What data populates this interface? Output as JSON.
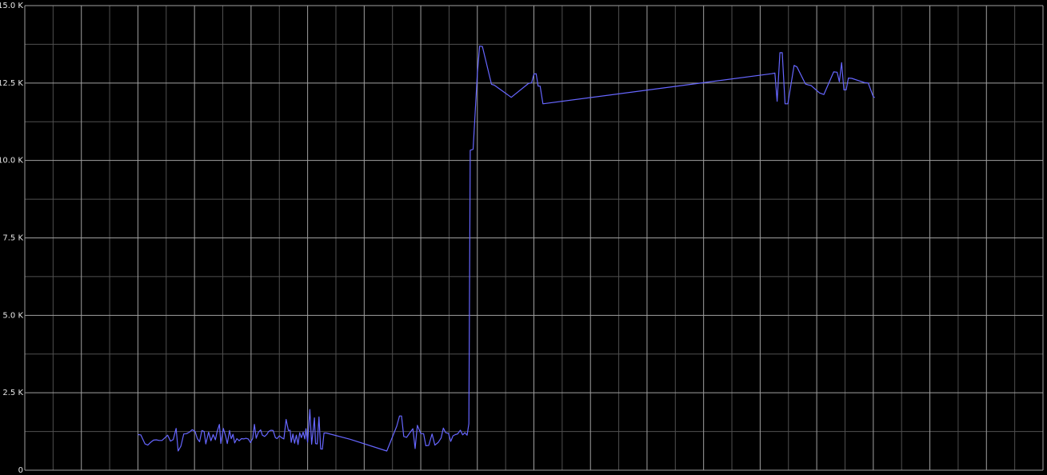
{
  "chart_data": {
    "type": "line",
    "title": "",
    "xlabel": "",
    "ylabel": "",
    "ylim": [
      0,
      15000
    ],
    "xlim": [
      0,
      36
    ],
    "y_ticks": [
      {
        "value": 0,
        "label": "0"
      },
      {
        "value": 2500,
        "label": "2.5 K"
      },
      {
        "value": 5000,
        "label": "5.0 K"
      },
      {
        "value": 7500,
        "label": "7.5 K"
      },
      {
        "value": 10000,
        "label": "10.0 K"
      },
      {
        "value": 12500,
        "label": "12.5 K"
      },
      {
        "value": 15000,
        "label": "15.0 K"
      }
    ],
    "x_grid_major": [
      2,
      4,
      6,
      8,
      10,
      12,
      14,
      16,
      18,
      20,
      22,
      24,
      26,
      28,
      30,
      32,
      34,
      36
    ],
    "x_grid_minor": [
      1,
      3,
      5,
      7,
      9,
      11,
      13,
      15,
      17,
      19,
      21,
      23,
      25,
      27,
      29,
      31,
      33,
      35
    ],
    "y_grid_minor": [
      1250,
      3750,
      6250,
      8750,
      11250,
      13750
    ],
    "grid": true,
    "legend": "none",
    "colors": {
      "background": "#000000",
      "line": "#6666ff",
      "grid_major": "#a0a0a0",
      "grid_minor": "#505050",
      "text": "#e6e6e6"
    },
    "series": [
      {
        "points": [
          [
            4.0,
            1150
          ],
          [
            4.1,
            1140
          ],
          [
            4.25,
            850
          ],
          [
            4.35,
            810
          ],
          [
            4.45,
            900
          ],
          [
            4.55,
            970
          ],
          [
            4.65,
            980
          ],
          [
            4.75,
            960
          ],
          [
            4.85,
            960
          ],
          [
            4.95,
            1040
          ],
          [
            5.05,
            1130
          ],
          [
            5.15,
            940
          ],
          [
            5.25,
            990
          ],
          [
            5.35,
            1350
          ],
          [
            5.42,
            620
          ],
          [
            5.52,
            780
          ],
          [
            5.62,
            1170
          ],
          [
            5.72,
            1180
          ],
          [
            5.82,
            1230
          ],
          [
            5.92,
            1310
          ],
          [
            6.02,
            1250
          ],
          [
            6.1,
            1020
          ],
          [
            6.18,
            920
          ],
          [
            6.26,
            1280
          ],
          [
            6.34,
            1250
          ],
          [
            6.4,
            850
          ],
          [
            6.5,
            1230
          ],
          [
            6.58,
            950
          ],
          [
            6.66,
            1150
          ],
          [
            6.74,
            980
          ],
          [
            6.8,
            1250
          ],
          [
            6.88,
            1480
          ],
          [
            6.93,
            860
          ],
          [
            7.02,
            1350
          ],
          [
            7.1,
            1100
          ],
          [
            7.16,
            860
          ],
          [
            7.24,
            1280
          ],
          [
            7.3,
            1020
          ],
          [
            7.36,
            1160
          ],
          [
            7.42,
            880
          ],
          [
            7.5,
            1020
          ],
          [
            7.58,
            950
          ],
          [
            7.66,
            1020
          ],
          [
            7.74,
            1010
          ],
          [
            7.82,
            1030
          ],
          [
            7.9,
            1010
          ],
          [
            7.98,
            890
          ],
          [
            8.06,
            1030
          ],
          [
            8.12,
            1480
          ],
          [
            8.18,
            1030
          ],
          [
            8.26,
            1230
          ],
          [
            8.34,
            1300
          ],
          [
            8.4,
            1130
          ],
          [
            8.48,
            1090
          ],
          [
            8.56,
            1160
          ],
          [
            8.62,
            1250
          ],
          [
            8.7,
            1290
          ],
          [
            8.78,
            1280
          ],
          [
            8.86,
            1050
          ],
          [
            8.92,
            1020
          ],
          [
            9.0,
            1110
          ],
          [
            9.08,
            1050
          ],
          [
            9.16,
            1010
          ],
          [
            9.24,
            1640
          ],
          [
            9.32,
            1280
          ],
          [
            9.38,
            1290
          ],
          [
            9.42,
            900
          ],
          [
            9.48,
            1170
          ],
          [
            9.54,
            870
          ],
          [
            9.6,
            1130
          ],
          [
            9.66,
            830
          ],
          [
            9.72,
            1210
          ],
          [
            9.78,
            1050
          ],
          [
            9.84,
            1230
          ],
          [
            9.9,
            1010
          ],
          [
            9.94,
            1340
          ],
          [
            10.0,
            900
          ],
          [
            10.08,
            1960
          ],
          [
            10.14,
            840
          ],
          [
            10.2,
            1330
          ],
          [
            10.24,
            1690
          ],
          [
            10.28,
            860
          ],
          [
            10.34,
            850
          ],
          [
            10.4,
            1720
          ],
          [
            10.46,
            690
          ],
          [
            10.52,
            680
          ],
          [
            10.58,
            1200
          ],
          [
            10.66,
            1200
          ],
          [
            11.5,
            1000
          ],
          [
            12.8,
            620
          ],
          [
            13.15,
            1420
          ],
          [
            13.25,
            1750
          ],
          [
            13.32,
            1750
          ],
          [
            13.4,
            1090
          ],
          [
            13.5,
            1060
          ],
          [
            13.6,
            1190
          ],
          [
            13.72,
            1340
          ],
          [
            13.8,
            700
          ],
          [
            13.88,
            1450
          ],
          [
            14.0,
            1180
          ],
          [
            14.1,
            1180
          ],
          [
            14.18,
            790
          ],
          [
            14.28,
            800
          ],
          [
            14.4,
            1170
          ],
          [
            14.5,
            810
          ],
          [
            14.62,
            900
          ],
          [
            14.72,
            1040
          ],
          [
            14.8,
            1360
          ],
          [
            14.88,
            1210
          ],
          [
            14.98,
            1190
          ],
          [
            15.06,
            930
          ],
          [
            15.14,
            1110
          ],
          [
            15.22,
            1150
          ],
          [
            15.3,
            1170
          ],
          [
            15.4,
            1290
          ],
          [
            15.48,
            1140
          ],
          [
            15.56,
            1210
          ],
          [
            15.64,
            1130
          ],
          [
            15.7,
            1500
          ],
          [
            15.75,
            10330
          ],
          [
            15.85,
            10360
          ],
          [
            16.0,
            12800
          ],
          [
            16.08,
            13690
          ],
          [
            16.18,
            13680
          ],
          [
            16.5,
            12460
          ],
          [
            16.6,
            12430
          ],
          [
            17.2,
            12040
          ],
          [
            17.8,
            12480
          ],
          [
            17.92,
            12510
          ],
          [
            18.0,
            12790
          ],
          [
            18.08,
            12800
          ],
          [
            18.15,
            12400
          ],
          [
            18.22,
            12400
          ],
          [
            18.32,
            11830
          ],
          [
            26.4,
            12800
          ],
          [
            26.52,
            12820
          ],
          [
            26.6,
            11910
          ],
          [
            26.7,
            13480
          ],
          [
            26.78,
            13480
          ],
          [
            26.88,
            11830
          ],
          [
            26.98,
            11830
          ],
          [
            27.2,
            13070
          ],
          [
            27.3,
            13020
          ],
          [
            27.6,
            12470
          ],
          [
            27.7,
            12440
          ],
          [
            27.8,
            12420
          ],
          [
            28.1,
            12180
          ],
          [
            28.25,
            12130
          ],
          [
            28.6,
            12860
          ],
          [
            28.72,
            12850
          ],
          [
            28.8,
            12540
          ],
          [
            28.88,
            13160
          ],
          [
            28.96,
            12280
          ],
          [
            29.04,
            12280
          ],
          [
            29.12,
            12660
          ],
          [
            29.24,
            12650
          ],
          [
            29.7,
            12510
          ],
          [
            29.82,
            12500
          ],
          [
            30.0,
            12060
          ],
          [
            30.05,
            12030
          ]
        ]
      }
    ]
  }
}
